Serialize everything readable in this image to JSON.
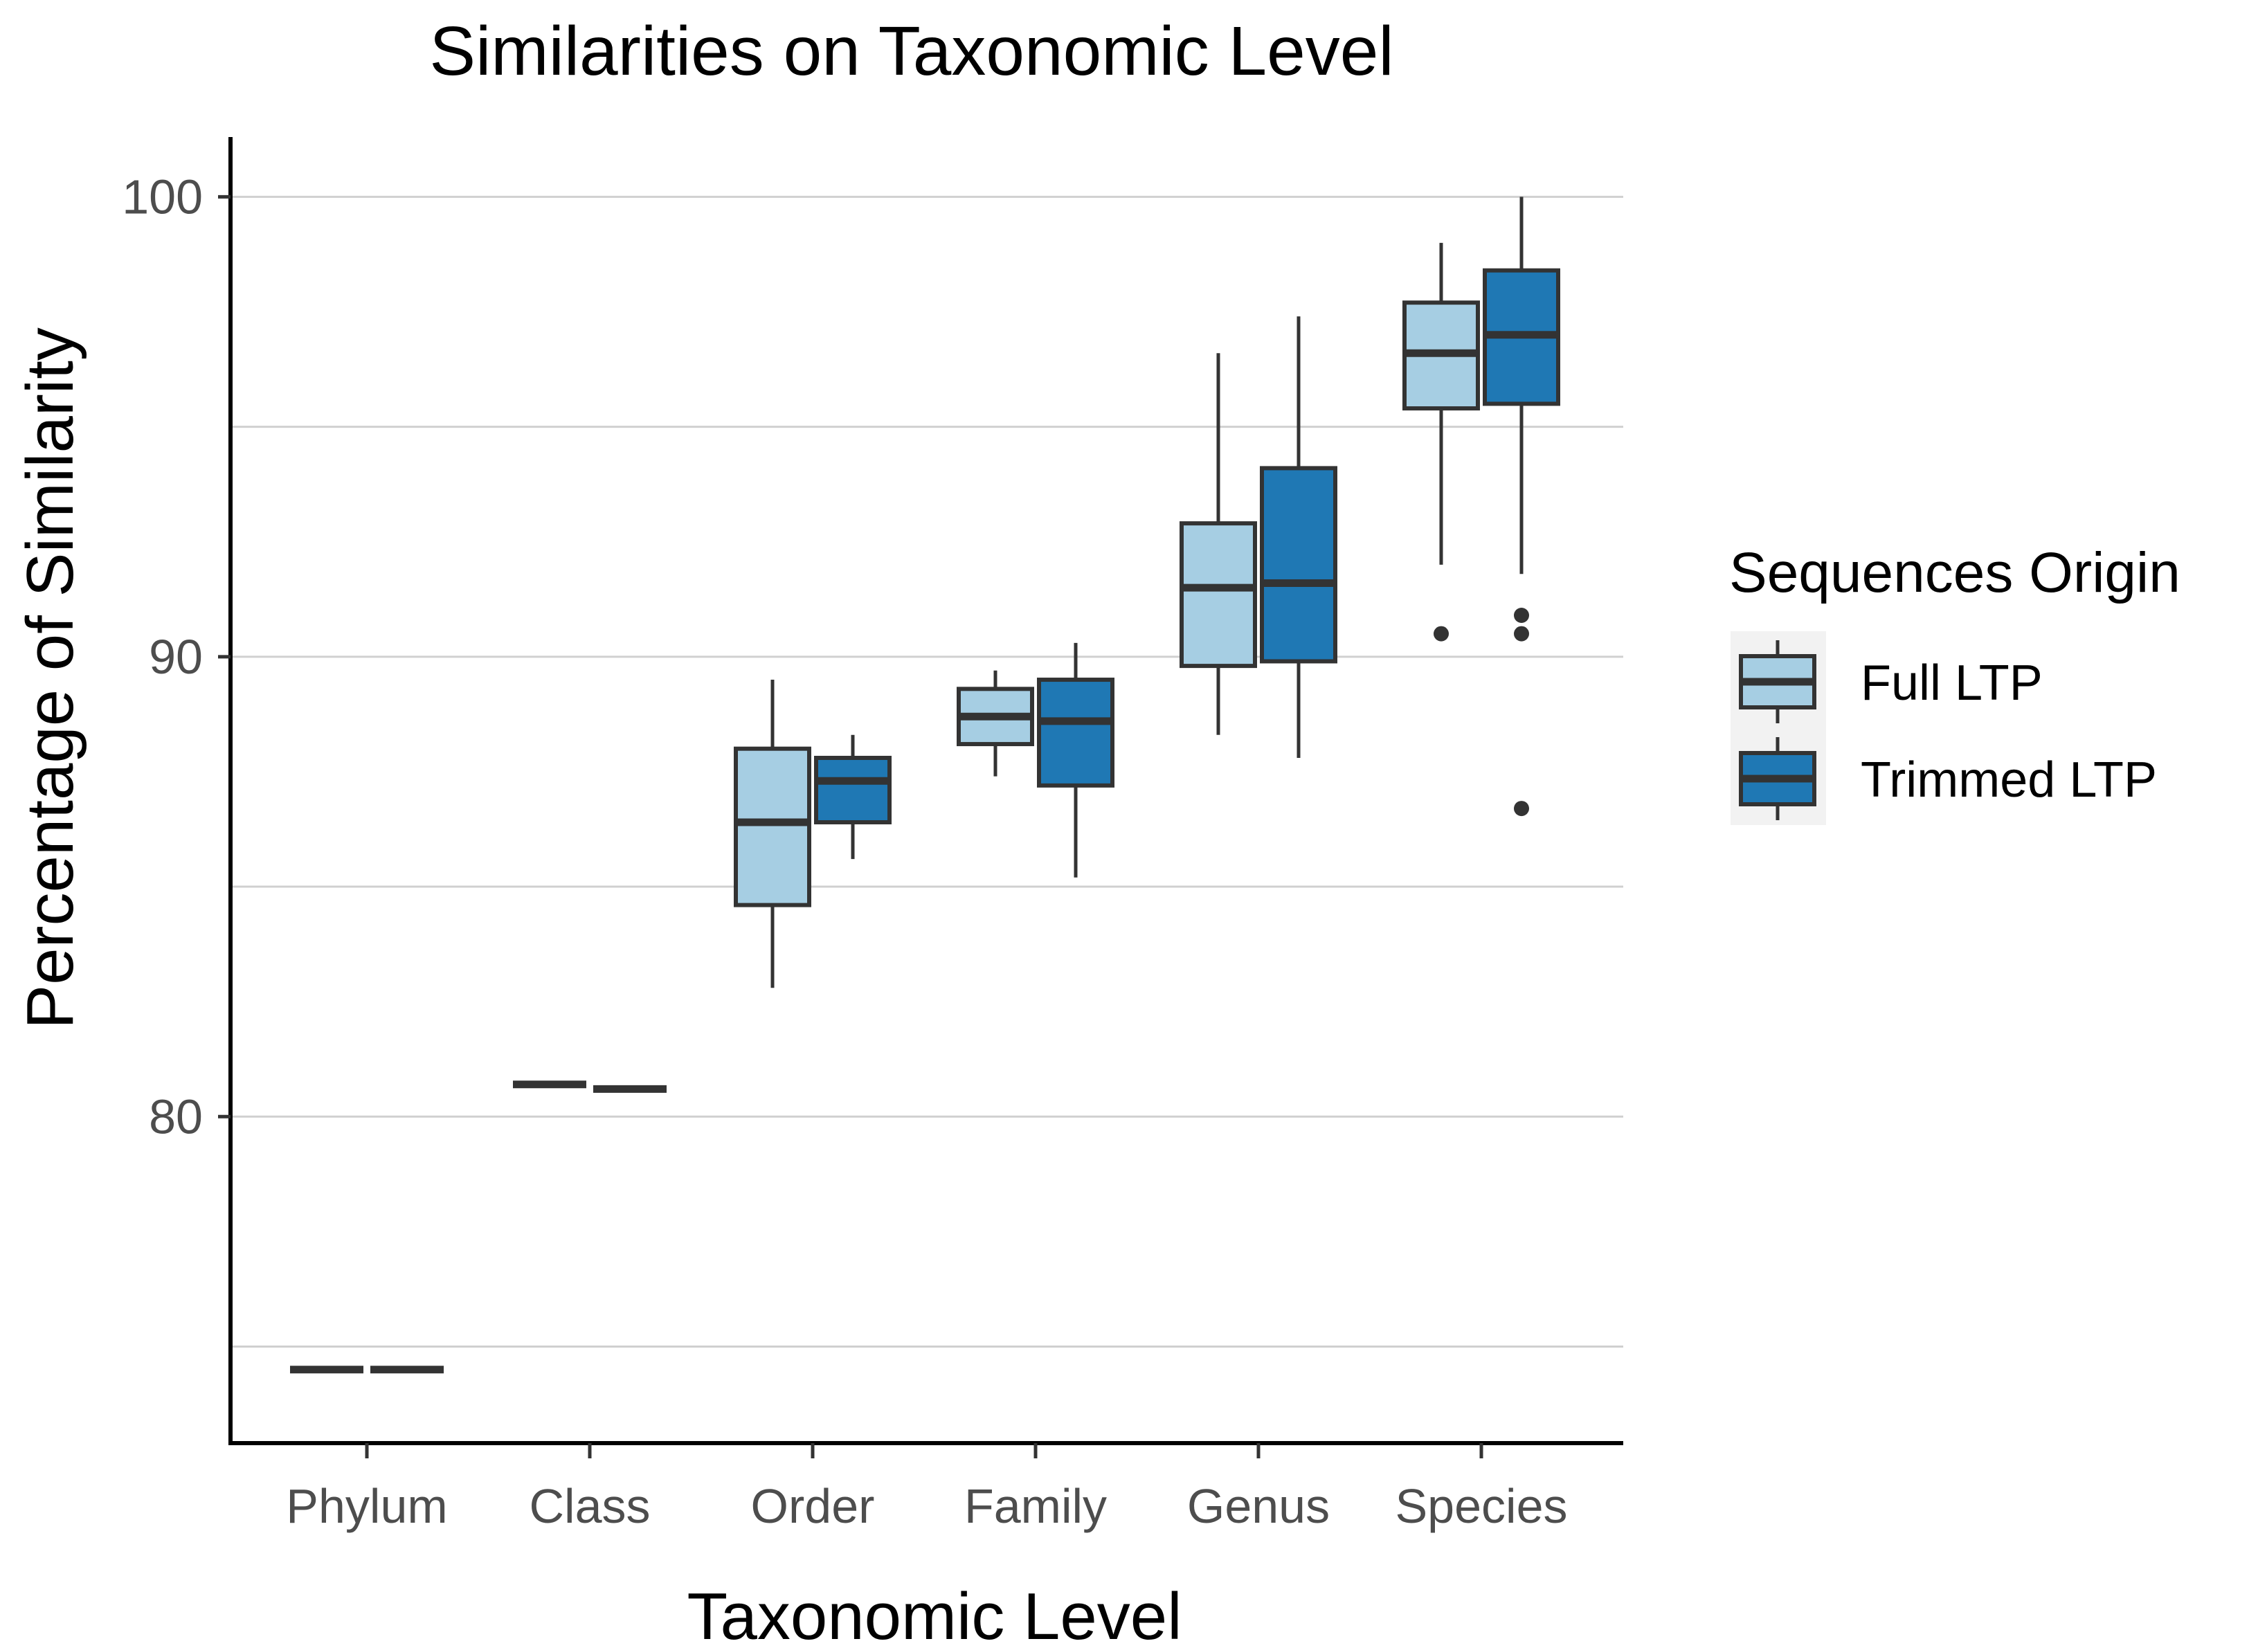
{
  "chart_data": {
    "type": "boxplot",
    "title": "Similarities on Taxonomic Level",
    "xlabel": "Taxonomic Level",
    "ylabel": "Percentage of Similarity",
    "ylim": [
      72.9,
      101.3
    ],
    "yticks": [
      80,
      90,
      100
    ],
    "ygrid": [
      75,
      80,
      85,
      90,
      95,
      100
    ],
    "categories": [
      "Phylum",
      "Class",
      "Order",
      "Family",
      "Genus",
      "Species"
    ],
    "legend_title": "Sequences Origin",
    "legend_position": "right",
    "series": [
      {
        "name": "Full LTP",
        "color": "#a6cee3",
        "boxes": [
          {
            "min": 74.5,
            "q1": 74.5,
            "median": 74.5,
            "q3": 74.5,
            "max": 74.5,
            "outliers": []
          },
          {
            "min": 80.7,
            "q1": 80.7,
            "median": 80.7,
            "q3": 80.7,
            "max": 80.7,
            "outliers": []
          },
          {
            "min": 82.8,
            "q1": 84.6,
            "median": 86.4,
            "q3": 88.0,
            "max": 89.5,
            "outliers": []
          },
          {
            "min": 87.4,
            "q1": 88.1,
            "median": 88.7,
            "q3": 89.3,
            "max": 89.7,
            "outliers": []
          },
          {
            "min": 88.3,
            "q1": 89.8,
            "median": 91.5,
            "q3": 92.9,
            "max": 96.6,
            "outliers": []
          },
          {
            "min": 92.0,
            "q1": 95.4,
            "median": 96.6,
            "q3": 97.7,
            "max": 99.0,
            "outliers": [
              90.5
            ]
          }
        ]
      },
      {
        "name": "Trimmed LTP",
        "color": "#1f78b4",
        "boxes": [
          {
            "min": 74.5,
            "q1": 74.5,
            "median": 74.5,
            "q3": 74.5,
            "max": 74.5,
            "outliers": []
          },
          {
            "min": 80.6,
            "q1": 80.6,
            "median": 80.6,
            "q3": 80.6,
            "max": 80.6,
            "outliers": []
          },
          {
            "min": 85.6,
            "q1": 86.4,
            "median": 87.3,
            "q3": 87.8,
            "max": 88.3,
            "outliers": []
          },
          {
            "min": 85.2,
            "q1": 87.2,
            "median": 88.6,
            "q3": 89.5,
            "max": 90.3,
            "outliers": []
          },
          {
            "min": 87.8,
            "q1": 89.9,
            "median": 91.6,
            "q3": 94.1,
            "max": 97.4,
            "outliers": []
          },
          {
            "min": 91.8,
            "q1": 95.5,
            "median": 97.0,
            "q3": 98.4,
            "max": 100.0,
            "outliers": [
              90.9,
              90.5,
              86.7
            ]
          }
        ]
      }
    ]
  }
}
